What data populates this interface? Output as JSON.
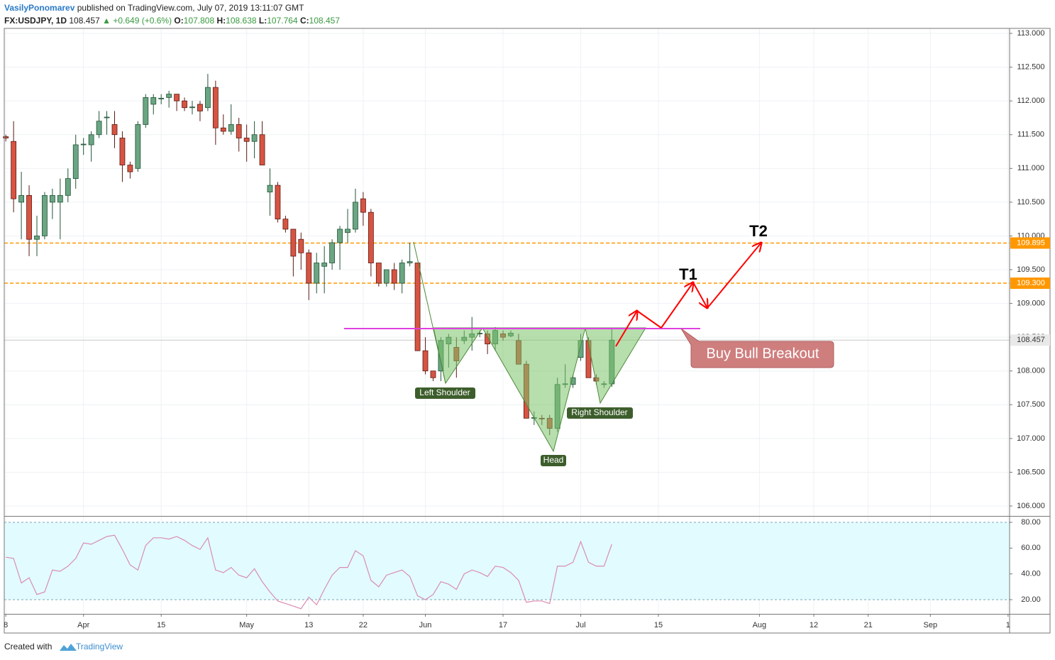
{
  "header": {
    "author": "VasilyPonomarev",
    "published": "published on TradingView.com, July 07, 2019 13:11:07 GMT",
    "symbol": "FX:USDJPY, 1D",
    "last": "108.457",
    "arrow": "▲",
    "change": "+0.649 (+0.6%)",
    "ohlc": [
      [
        "O:",
        "107.808"
      ],
      [
        "H:",
        "108.638"
      ],
      [
        "L:",
        "107.764"
      ],
      [
        "C:",
        "108.457"
      ]
    ]
  },
  "annotations": {
    "left_shoulder": "Left Shoulder",
    "head": "Head",
    "right_shoulder": "Right Shoulder",
    "callout": "Buy Bull Breakout",
    "t1": "T1",
    "t2": "T2"
  },
  "footer": {
    "text": "Created with",
    "brand": "TradingView"
  },
  "chart_data": [
    {
      "type": "candlestick",
      "up_color": "#6ba583",
      "down_color": "#d75442",
      "grid": true,
      "x": [
        0,
        1,
        2,
        3,
        4,
        5,
        6,
        7,
        8,
        9,
        10,
        11,
        12,
        13,
        14,
        15,
        16,
        17,
        18,
        19,
        20,
        21,
        22,
        23,
        24,
        25,
        26,
        27,
        28,
        29,
        30,
        31,
        32,
        33,
        34,
        35,
        36,
        37,
        38,
        39,
        40,
        41,
        42,
        43,
        44,
        45,
        46,
        47,
        48,
        49,
        50,
        51,
        52,
        53,
        54,
        55,
        56,
        57,
        58,
        59,
        60,
        61,
        62,
        63,
        64,
        65,
        66,
        67,
        68,
        69,
        70,
        71,
        72,
        73,
        74,
        75,
        76,
        77,
        78
      ],
      "open": [
        111.47,
        111.4,
        110.5,
        110.6,
        109.95,
        110.0,
        110.5,
        110.5,
        110.6,
        110.85,
        111.35,
        111.35,
        111.5,
        111.75,
        111.65,
        111.45,
        111.05,
        111.0,
        111.65,
        111.95,
        112.03,
        112.05,
        112.1,
        112.0,
        111.9,
        111.95,
        111.9,
        112.2,
        111.6,
        111.55,
        111.65,
        111.45,
        111.4,
        111.5,
        110.65,
        110.75,
        110.25,
        110.1,
        109.95,
        109.75,
        109.3,
        109.55,
        109.6,
        109.9,
        110.05,
        110.1,
        110.55,
        110.35,
        109.6,
        109.3,
        109.5,
        109.3,
        109.6,
        109.6,
        108.3,
        108.0,
        108.0,
        108.4,
        108.35,
        108.45,
        108.5,
        108.55,
        108.55,
        108.4,
        108.55,
        108.52,
        108.45,
        108.1,
        107.3,
        107.3,
        107.3,
        107.15,
        107.8,
        107.8,
        108.2,
        108.45,
        107.9,
        107.8,
        107.808
      ],
      "high": [
        111.5,
        111.7,
        110.95,
        110.75,
        110.3,
        110.65,
        110.7,
        110.85,
        111.0,
        111.5,
        111.45,
        111.55,
        111.85,
        111.85,
        111.85,
        111.55,
        111.1,
        111.7,
        112.1,
        112.1,
        112.1,
        112.15,
        112.1,
        112.05,
        112.0,
        112.0,
        112.4,
        112.3,
        111.8,
        111.95,
        111.75,
        111.65,
        111.7,
        111.7,
        111.0,
        110.8,
        110.3,
        110.1,
        110.05,
        109.8,
        109.75,
        109.85,
        109.95,
        110.15,
        110.4,
        110.7,
        110.65,
        110.4,
        109.6,
        109.5,
        109.6,
        109.65,
        109.9,
        109.6,
        108.5,
        108.0,
        108.5,
        108.55,
        108.5,
        108.6,
        108.8,
        108.6,
        108.6,
        108.65,
        108.6,
        108.6,
        108.55,
        108.15,
        107.4,
        107.35,
        107.35,
        107.9,
        108.1,
        107.95,
        108.55,
        108.5,
        107.95,
        107.85,
        108.638
      ],
      "low": [
        111.4,
        110.35,
        109.95,
        109.7,
        109.7,
        109.95,
        110.25,
        109.95,
        110.5,
        110.7,
        111.2,
        111.1,
        111.45,
        111.5,
        111.3,
        110.8,
        110.85,
        110.95,
        111.6,
        111.8,
        111.95,
        111.9,
        111.85,
        111.85,
        111.8,
        111.7,
        111.85,
        111.35,
        111.5,
        111.5,
        111.25,
        111.1,
        111.15,
        111.05,
        110.3,
        110.2,
        110.05,
        109.4,
        109.5,
        109.05,
        109.15,
        109.15,
        109.5,
        109.5,
        109.9,
        110.05,
        110.15,
        109.4,
        109.25,
        109.25,
        109.2,
        109.15,
        109.55,
        108.3,
        107.95,
        107.85,
        107.85,
        108.05,
        107.9,
        108.4,
        108.3,
        108.5,
        108.25,
        108.3,
        108.45,
        108.5,
        108.1,
        107.3,
        107.2,
        107.2,
        107.05,
        107.1,
        107.75,
        107.75,
        108.15,
        107.9,
        107.8,
        107.75,
        107.764
      ],
      "close": [
        111.45,
        110.55,
        110.6,
        109.95,
        110.0,
        110.6,
        110.6,
        110.6,
        110.85,
        111.35,
        111.36,
        111.5,
        111.7,
        111.76,
        111.5,
        111.05,
        110.95,
        111.65,
        112.05,
        112.05,
        112.04,
        112.1,
        112.0,
        111.9,
        111.91,
        111.85,
        112.2,
        111.6,
        111.55,
        111.65,
        111.45,
        111.4,
        111.5,
        111.05,
        110.75,
        110.25,
        110.1,
        109.7,
        109.75,
        109.3,
        109.6,
        109.6,
        109.9,
        110.1,
        110.1,
        110.5,
        110.35,
        109.6,
        109.3,
        109.5,
        109.3,
        109.6,
        109.62,
        108.3,
        108.0,
        107.9,
        108.45,
        108.5,
        108.15,
        108.5,
        108.55,
        108.56,
        108.4,
        108.6,
        108.5,
        108.56,
        108.1,
        107.3,
        107.31,
        107.29,
        107.15,
        107.8,
        107.81,
        107.9,
        108.45,
        107.9,
        107.85,
        107.81,
        108.457
      ],
      "xlim": [
        -0.2,
        129.2
      ],
      "xticks": [
        {
          "value": 0,
          "label": "8"
        },
        {
          "value": 10,
          "label": "Apr"
        },
        {
          "value": 20,
          "label": "15"
        },
        {
          "value": 31,
          "label": "May"
        },
        {
          "value": 39,
          "label": "13"
        },
        {
          "value": 46,
          "label": "22"
        },
        {
          "value": 54,
          "label": "Jun"
        },
        {
          "value": 64,
          "label": "17"
        },
        {
          "value": 74,
          "label": "Jul"
        },
        {
          "value": 84,
          "label": "15"
        },
        {
          "value": 97,
          "label": "Aug"
        },
        {
          "value": 104,
          "label": "12"
        },
        {
          "value": 111,
          "label": "21"
        },
        {
          "value": 119,
          "label": "Sep"
        },
        {
          "value": 129,
          "label": "1"
        }
      ],
      "ylim": [
        105.853,
        113.074
      ],
      "yticks": [
        {
          "value": 106,
          "label": "106.000"
        },
        {
          "value": 106.5,
          "label": "106.500"
        },
        {
          "value": 107,
          "label": "107.000"
        },
        {
          "value": 107.5,
          "label": "107.500"
        },
        {
          "value": 108,
          "label": "108.000"
        },
        {
          "value": 108.5,
          "label": "108.500"
        },
        {
          "value": 109,
          "label": "109.000"
        },
        {
          "value": 109.5,
          "label": "109.500"
        },
        {
          "value": 110,
          "label": "110.000"
        },
        {
          "value": 110.5,
          "label": "110.500"
        },
        {
          "value": 111,
          "label": "111.000"
        },
        {
          "value": 111.5,
          "label": "111.500"
        },
        {
          "value": 112,
          "label": "112.000"
        },
        {
          "value": 112.5,
          "label": "112.500"
        },
        {
          "value": 113,
          "label": "113.000"
        }
      ],
      "levels": [
        {
          "value": 109.895,
          "label": "109.895",
          "color": "#ff9800"
        },
        {
          "value": 109.3,
          "label": "109.300",
          "color": "#ff9800"
        }
      ],
      "last_price": {
        "value": 108.457,
        "label": "108.457"
      }
    },
    {
      "type": "line",
      "color": "#d98cb3",
      "band_color": "#e2fbff",
      "x": [
        0,
        1,
        2,
        3,
        4,
        5,
        6,
        7,
        8,
        9,
        10,
        11,
        12,
        13,
        14,
        15,
        16,
        17,
        18,
        19,
        20,
        21,
        22,
        23,
        24,
        25,
        26,
        27,
        28,
        29,
        30,
        31,
        32,
        33,
        34,
        35,
        36,
        37,
        38,
        39,
        40,
        41,
        42,
        43,
        44,
        45,
        46,
        47,
        48,
        49,
        50,
        51,
        52,
        53,
        54,
        55,
        56,
        57,
        58,
        59,
        60,
        61,
        62,
        63,
        64,
        65,
        66,
        67,
        68,
        69,
        70,
        71,
        72,
        73,
        74,
        75,
        76,
        77,
        78
      ],
      "values": [
        53,
        52,
        33,
        37,
        24,
        26,
        43,
        42,
        46,
        52,
        64,
        63,
        66,
        69,
        70,
        59,
        47,
        43,
        62,
        68,
        68,
        67,
        69,
        66,
        62,
        59,
        68,
        43,
        41,
        45,
        39,
        37,
        44,
        34,
        26,
        19,
        17,
        15,
        13,
        22,
        16,
        28,
        39,
        45,
        45,
        58,
        54,
        35,
        30,
        39,
        41,
        43,
        38,
        23,
        20,
        24,
        34,
        32,
        28,
        40,
        43,
        41,
        38,
        46,
        45,
        41,
        35,
        18,
        19,
        19,
        17,
        46,
        46,
        49,
        65,
        49,
        46,
        46,
        63
      ],
      "xlim": [
        -0.2,
        129.2
      ],
      "ylim": [
        9.0,
        84.4
      ],
      "yticks": [
        {
          "value": 20,
          "label": "20.00"
        },
        {
          "value": 40,
          "label": "40.00"
        },
        {
          "value": 60,
          "label": "60.00"
        },
        {
          "value": 80,
          "label": "80.00"
        }
      ],
      "bands": [
        20,
        80
      ]
    }
  ]
}
